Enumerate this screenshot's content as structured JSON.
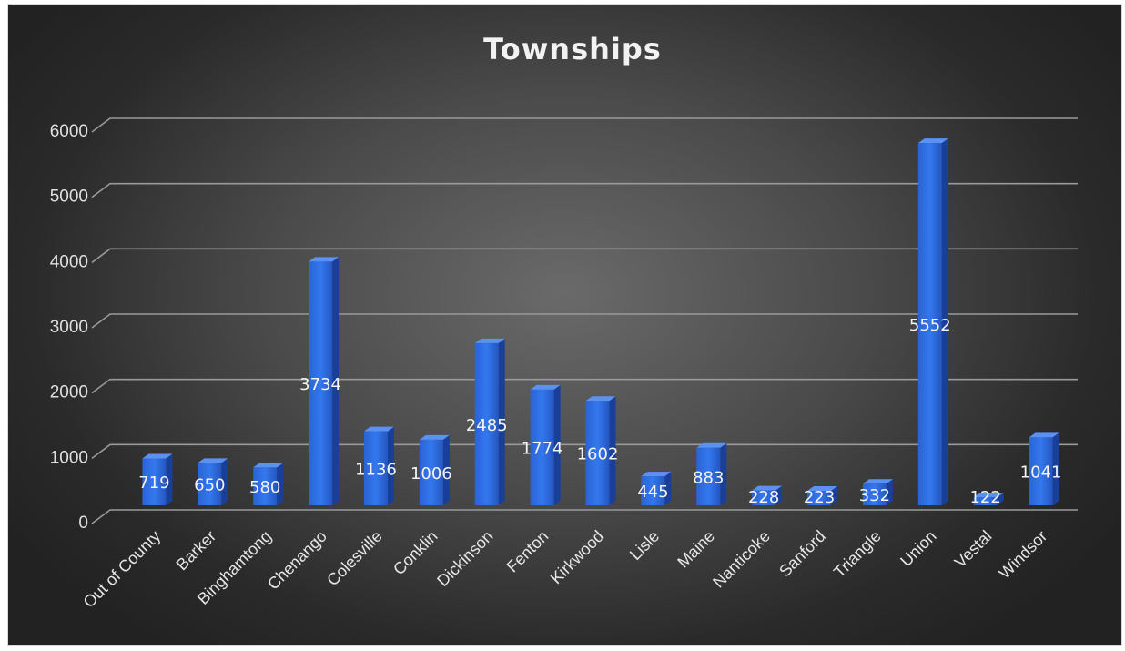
{
  "chart_data": {
    "type": "bar",
    "title": "Townships",
    "xlabel": "",
    "ylabel": "",
    "categories": [
      "Out of County",
      "Barker",
      "Binghamtong",
      "Chenango",
      "Colesville",
      "Conklin",
      "Dickinson",
      "Fenton",
      "Kirkwood",
      "Lisle",
      "Maine",
      "Nanticoke",
      "Sanford",
      "Triangle",
      "Union",
      "Vestal",
      "Windsor"
    ],
    "values": [
      719,
      650,
      580,
      3734,
      1136,
      1006,
      2485,
      1774,
      1602,
      445,
      883,
      228,
      223,
      332,
      5552,
      122,
      1041
    ],
    "yticks": [
      "0",
      "1000",
      "2000",
      "3000",
      "4000",
      "5000",
      "6000"
    ],
    "ylim": [
      0,
      6000
    ],
    "grid": true,
    "legend": "none",
    "bar_color": "#2f6fe0",
    "background": "dark gradient"
  }
}
